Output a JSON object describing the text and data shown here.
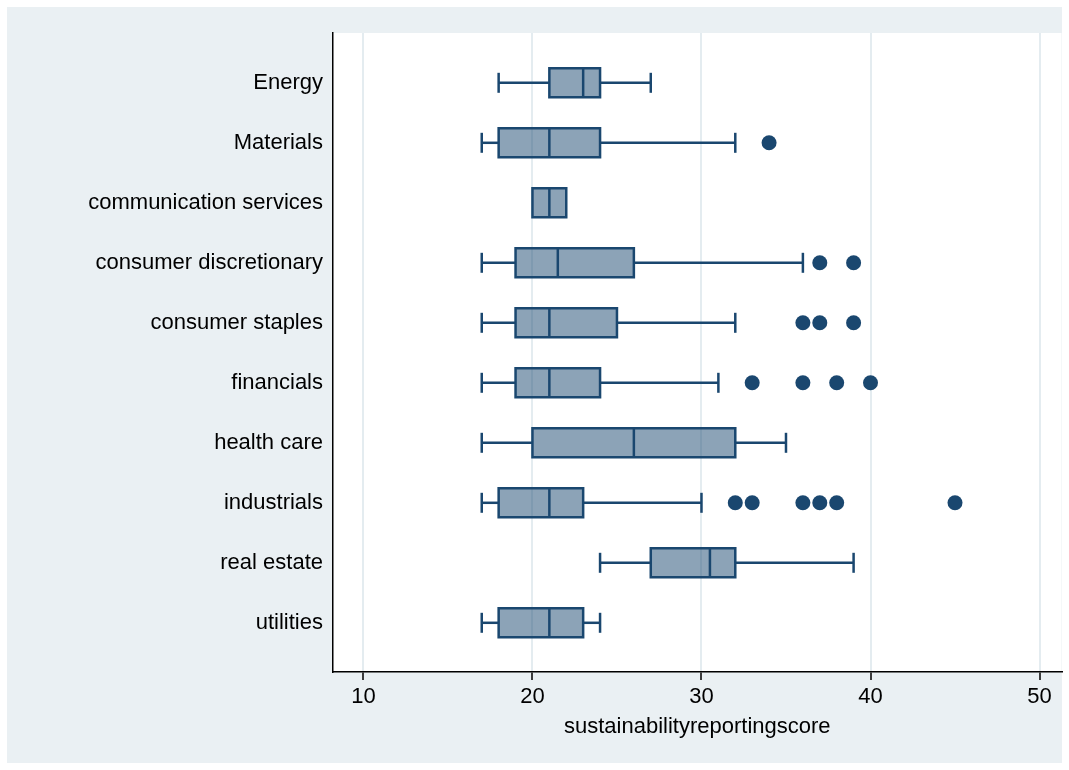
{
  "chart_data": {
    "type": "box",
    "orientation": "horizontal",
    "xlabel": "sustainabilityreportingscore",
    "categories": [
      "Energy",
      "Materials",
      "communication services",
      "consumer discretionary",
      "consumer staples",
      "financials",
      "health care",
      "industrials",
      "real estate",
      "utilities"
    ],
    "boxes": [
      {
        "low": 18,
        "q1": 21,
        "median": 23,
        "q3": 24,
        "high": 27
      },
      {
        "low": 17,
        "q1": 18,
        "median": 21,
        "q3": 24,
        "high": 32,
        "outliers": [
          34
        ]
      },
      {
        "low": 20,
        "q1": 20,
        "median": 21,
        "q3": 22,
        "high": 22
      },
      {
        "low": 17,
        "q1": 19,
        "median": 21.5,
        "q3": 26,
        "high": 36,
        "outliers": [
          37,
          39
        ]
      },
      {
        "low": 17,
        "q1": 19,
        "median": 21,
        "q3": 25,
        "high": 32,
        "outliers": [
          36,
          37,
          39
        ]
      },
      {
        "low": 17,
        "q1": 19,
        "median": 21,
        "q3": 24,
        "high": 31,
        "outliers": [
          33,
          36,
          38,
          40
        ]
      },
      {
        "low": 17,
        "q1": 20,
        "median": 26,
        "q3": 32,
        "high": 35
      },
      {
        "low": 17,
        "q1": 18,
        "median": 21,
        "q3": 23,
        "high": 30,
        "outliers": [
          32,
          33,
          36,
          37,
          38,
          45
        ]
      },
      {
        "low": 24,
        "q1": 27,
        "median": 30.5,
        "q3": 32,
        "high": 39
      },
      {
        "low": 17,
        "q1": 18,
        "median": 21,
        "q3": 23,
        "high": 24
      }
    ],
    "color": "#1a476f",
    "xlim": [
      8.2,
      51.3
    ],
    "xticks": [
      10,
      20,
      30,
      40,
      50
    ],
    "grid": "x",
    "legend": false,
    "marker": "circle"
  }
}
